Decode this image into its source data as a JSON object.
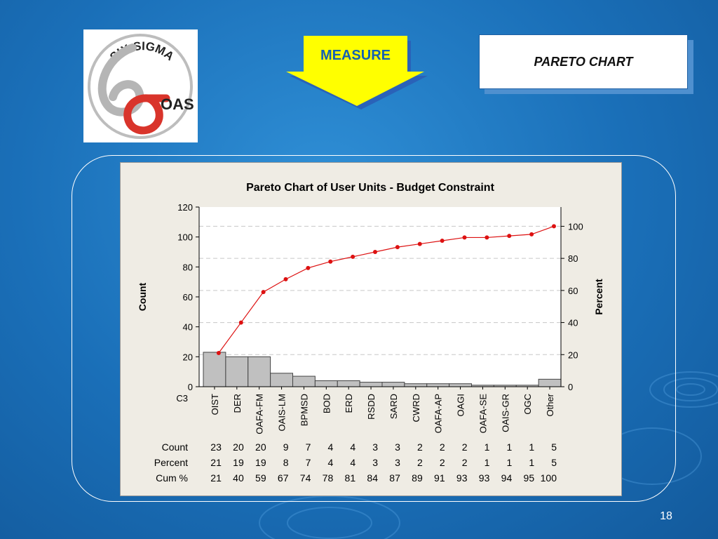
{
  "slide": {
    "header_label": "MEASURE",
    "title_box": "PARETO CHART",
    "page_number": "18",
    "logo": {
      "text_top": "SIX SIGMA",
      "text_side": "OAS",
      "colors": {
        "six": "#b5b5b5",
        "sigma": "#d9342b"
      }
    }
  },
  "colors": {
    "background": "#1a6fb8",
    "arrow": "#ffff00",
    "bars": "#c0c0c0",
    "cum_line": "#dd1111",
    "panel": "#efece4"
  },
  "chart_data": {
    "type": "bar",
    "title": "Pareto Chart of User Units - Budget Constraint",
    "ylabel": "Count",
    "y2label": "Percent",
    "xlabel": "C3",
    "ylim": [
      0,
      120
    ],
    "y2lim": [
      0,
      112
    ],
    "yticks": [
      0,
      20,
      40,
      60,
      80,
      100,
      120
    ],
    "y2ticks": [
      0,
      20,
      40,
      60,
      80,
      100
    ],
    "grid": "dashed-horizontal",
    "categories": [
      "OIST",
      "DER",
      "OAFA-FM",
      "OAIS-LM",
      "BPMSD",
      "BOD",
      "ERD",
      "RSDD",
      "SARD",
      "CWRD",
      "OAFA-AP",
      "OAGI",
      "OAFA-SE",
      "OAIS-GR",
      "OGC",
      "Other"
    ],
    "series": [
      {
        "name": "Count",
        "type": "bar",
        "values": [
          23,
          20,
          20,
          9,
          7,
          4,
          4,
          3,
          3,
          2,
          2,
          2,
          1,
          1,
          1,
          5
        ]
      },
      {
        "name": "Cum %",
        "type": "line",
        "values": [
          21,
          40,
          59,
          67,
          74,
          78,
          81,
          84,
          87,
          89,
          91,
          93,
          93,
          94,
          95,
          100
        ]
      }
    ],
    "table": {
      "row_labels": [
        "Count",
        "Percent",
        "Cum %"
      ],
      "rows": [
        [
          "23",
          "20",
          "20",
          "9",
          "7",
          "4",
          "4",
          "3",
          "3",
          "2",
          "2",
          "2",
          "1",
          "1",
          "1",
          "5"
        ],
        [
          "21",
          "19",
          "19",
          "8",
          "7",
          "4",
          "4",
          "3",
          "3",
          "2",
          "2",
          "2",
          "1",
          "1",
          "1",
          "5"
        ],
        [
          "21",
          "40",
          "59",
          "67",
          "74",
          "78",
          "81",
          "84",
          "87",
          "89",
          "91",
          "93",
          "93",
          "94",
          "95",
          "100"
        ]
      ]
    }
  }
}
